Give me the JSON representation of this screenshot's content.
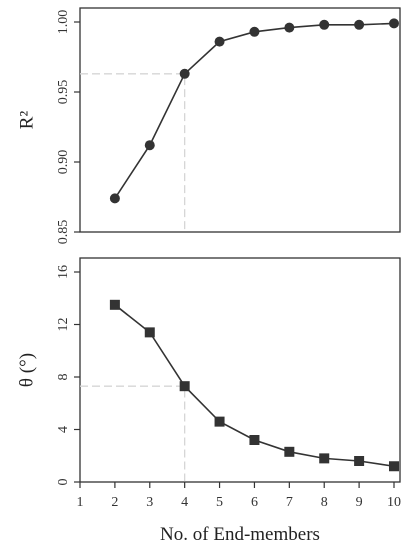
{
  "chart_data": [
    {
      "type": "line",
      "panel": "top",
      "marker": "circle",
      "xlabel": "",
      "ylabel": "R²",
      "x": [
        2,
        3,
        4,
        5,
        6,
        7,
        8,
        9,
        10
      ],
      "values": [
        0.874,
        0.912,
        0.963,
        0.986,
        0.993,
        0.996,
        0.998,
        0.998,
        0.999
      ],
      "xlim": [
        1,
        10
      ],
      "ylim": [
        0.85,
        1.0
      ],
      "yticks": [
        0.85,
        0.9,
        0.95,
        1.0
      ],
      "yticklabels": [
        "0.85",
        "0.90",
        "0.95",
        "1.00"
      ],
      "guide": {
        "x": 4,
        "y": 0.963
      },
      "grid": false,
      "color": "#333333"
    },
    {
      "type": "line",
      "panel": "bottom",
      "marker": "square",
      "xlabel": "No. of End-members",
      "ylabel": "θ (°)",
      "x": [
        2,
        3,
        4,
        5,
        6,
        7,
        8,
        9,
        10
      ],
      "values": [
        13.5,
        11.4,
        7.3,
        4.6,
        3.2,
        2.3,
        1.8,
        1.6,
        1.2
      ],
      "xlim": [
        1,
        10
      ],
      "ylim": [
        0,
        16
      ],
      "xticks": [
        1,
        2,
        3,
        4,
        5,
        6,
        7,
        8,
        9,
        10
      ],
      "xticklabels": [
        "1",
        "2",
        "3",
        "4",
        "5",
        "6",
        "7",
        "8",
        "9",
        "10"
      ],
      "yticks": [
        0,
        4,
        8,
        12,
        16
      ],
      "yticklabels": [
        "0",
        "4",
        "8",
        "12",
        "16"
      ],
      "guide": {
        "x": 4,
        "y": 7.3
      },
      "grid": false,
      "color": "#333333"
    }
  ]
}
